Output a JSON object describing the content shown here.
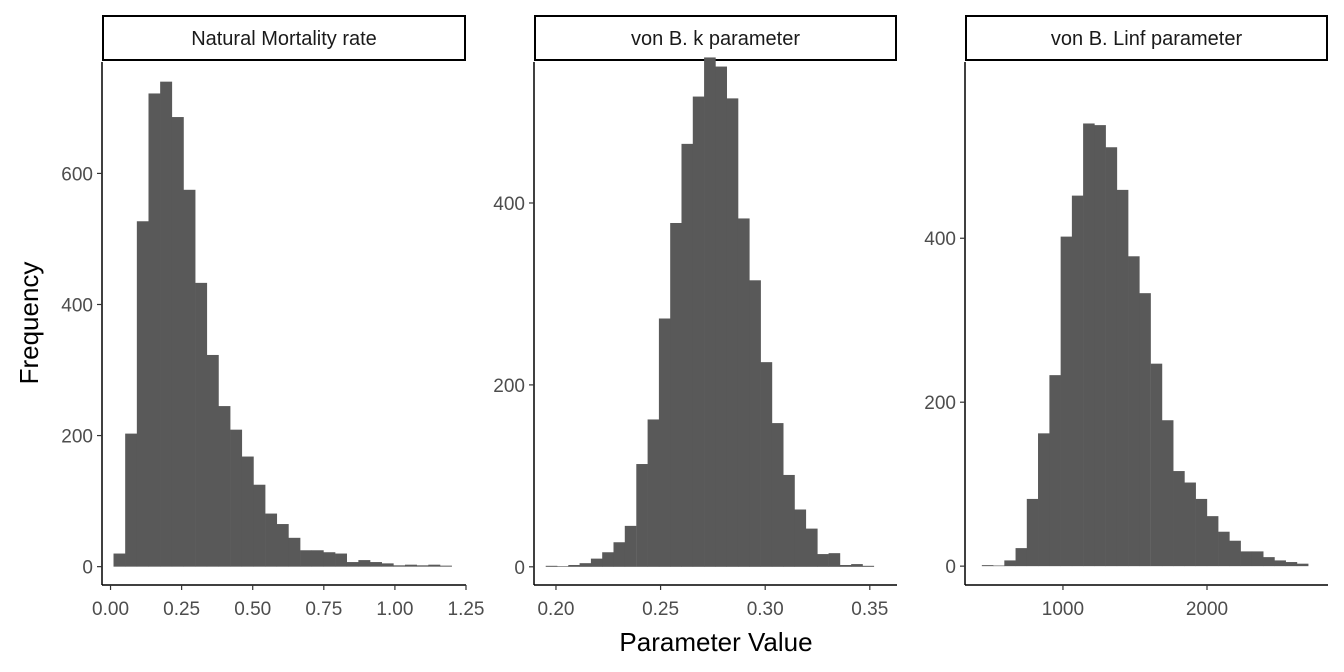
{
  "chart_data": {
    "type": "bar",
    "xlabel": "Parameter Value",
    "ylabel": "Frequency",
    "colors": {
      "bar": "#595959",
      "axis": "#000000",
      "strip_fill": "#ffffff"
    },
    "panels": [
      {
        "title": "Natural Mortality rate",
        "xlim": [
          -0.03,
          1.25
        ],
        "ylim": [
          -28,
          770
        ],
        "x_ticks": [
          0.0,
          0.25,
          0.5,
          0.75,
          1.0,
          1.25
        ],
        "x_tick_labels": [
          "0.00",
          "0.25",
          "0.50",
          "0.75",
          "1.00",
          "1.25"
        ],
        "y_ticks": [
          0,
          200,
          400,
          600
        ],
        "y_tick_labels": [
          "0",
          "200",
          "400",
          "600"
        ],
        "bin_width": 0.041,
        "bin_centers": [
          0.031,
          0.072,
          0.113,
          0.154,
          0.195,
          0.236,
          0.277,
          0.318,
          0.359,
          0.4,
          0.441,
          0.482,
          0.523,
          0.564,
          0.605,
          0.646,
          0.687,
          0.728,
          0.769,
          0.81,
          0.851,
          0.892,
          0.933,
          0.974,
          1.015,
          1.056,
          1.097,
          1.138,
          1.179
        ],
        "counts": [
          20,
          203,
          527,
          722,
          740,
          686,
          575,
          433,
          323,
          245,
          209,
          168,
          125,
          81,
          65,
          44,
          25,
          25,
          22,
          20,
          7,
          10,
          7,
          5,
          2,
          3,
          2,
          3,
          1
        ]
      },
      {
        "title": "von B. k parameter",
        "xlim": [
          0.1895,
          0.363
        ],
        "ylim": [
          -20,
          555
        ],
        "x_ticks": [
          0.2,
          0.25,
          0.3,
          0.35
        ],
        "x_tick_labels": [
          "0.20",
          "0.25",
          "0.30",
          "0.35"
        ],
        "y_ticks": [
          0,
          200,
          400
        ],
        "y_tick_labels": [
          "0",
          "200",
          "400"
        ],
        "bin_width": 0.00541,
        "bin_centers": [
          0.1978,
          0.2032,
          0.2086,
          0.214,
          0.2194,
          0.2248,
          0.2302,
          0.2356,
          0.2411,
          0.2465,
          0.2519,
          0.2573,
          0.2627,
          0.2681,
          0.2735,
          0.2789,
          0.2843,
          0.2897,
          0.2951,
          0.3005,
          0.3059,
          0.3113,
          0.3167,
          0.3222,
          0.3276,
          0.333,
          0.3384,
          0.3438,
          0.3492
        ],
        "counts": [
          1,
          0,
          2,
          4,
          9,
          16,
          27,
          45,
          113,
          162,
          273,
          378,
          465,
          517,
          560,
          550,
          515,
          383,
          315,
          225,
          158,
          101,
          63,
          42,
          14,
          15,
          2,
          3,
          1
        ]
      },
      {
        "title": "von B. Linf parameter",
        "xlim": [
          320,
          2840
        ],
        "ylim": [
          -23,
          615
        ],
        "x_ticks": [
          1000,
          2000
        ],
        "x_tick_labels": [
          "1000",
          "2000"
        ],
        "y_ticks": [
          0,
          200,
          400
        ],
        "y_tick_labels": [
          "0",
          "200",
          "400"
        ],
        "bin_width": 78.1,
        "bin_centers": [
          476,
          554,
          632,
          710,
          788,
          866,
          945,
          1023,
          1101,
          1179,
          1257,
          1335,
          1413,
          1491,
          1569,
          1648,
          1726,
          1804,
          1882,
          1960,
          2038,
          2116,
          2194,
          2272,
          2351,
          2429,
          2507,
          2585,
          2663
        ],
        "counts": [
          1,
          0,
          7,
          22,
          82,
          162,
          233,
          402,
          452,
          540,
          538,
          511,
          459,
          378,
          333,
          247,
          178,
          116,
          102,
          82,
          61,
          42,
          31,
          18,
          18,
          11,
          7,
          5,
          3
        ]
      }
    ]
  }
}
